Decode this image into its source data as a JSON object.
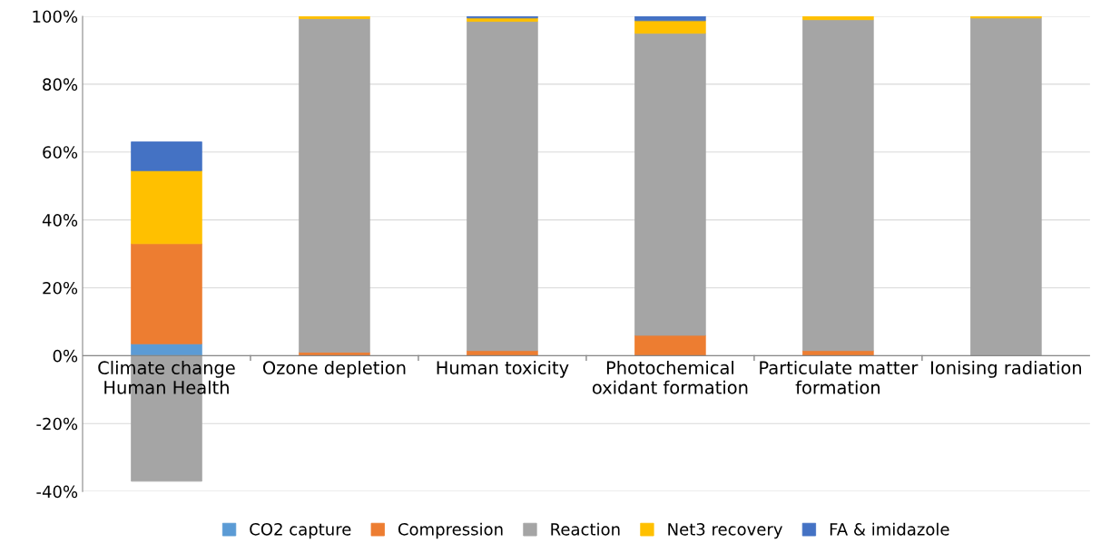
{
  "chart_data": {
    "type": "bar",
    "stacked": true,
    "categories": [
      "Climate change\nHuman Health",
      "Ozone depletion",
      "Human toxicity",
      "Photochemical\noxidant formation",
      "Particulate matter\nformation",
      "Ionising radiation"
    ],
    "series": [
      {
        "name": "CO2 capture",
        "color": "#5b9bd5",
        "values": [
          3.5,
          null,
          null,
          null,
          null,
          null
        ]
      },
      {
        "name": "Compression",
        "color": "#ed7d31",
        "values": [
          29.5,
          1,
          1.5,
          6,
          1.5,
          null
        ]
      },
      {
        "name": "Reaction",
        "color": "#a5a5a5",
        "values": [
          -37,
          98.3,
          97,
          89,
          97.5,
          99.5
        ]
      },
      {
        "name": "Net3 recovery",
        "color": "#ffc000",
        "values": [
          21.5,
          0.7,
          1,
          3.7,
          1,
          0.5
        ]
      },
      {
        "name": "FA & imidazole",
        "color": "#4472c4",
        "values": [
          8.5,
          null,
          0.5,
          1.3,
          null,
          null
        ]
      }
    ],
    "ylim": [
      -40,
      100
    ],
    "yticks": [
      {
        "value": -40,
        "label": "-40%"
      },
      {
        "value": -20,
        "label": "-20%"
      },
      {
        "value": 0,
        "label": "0%"
      },
      {
        "value": 20,
        "label": "20%"
      },
      {
        "value": 40,
        "label": "40%"
      },
      {
        "value": 60,
        "label": "60%"
      },
      {
        "value": 80,
        "label": "80%"
      },
      {
        "value": 100,
        "label": "100%"
      }
    ],
    "grid": "y",
    "legend": "bottom"
  }
}
